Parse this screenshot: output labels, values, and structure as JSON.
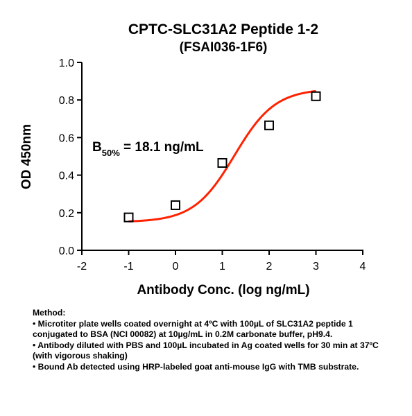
{
  "chart_data": {
    "type": "scatter",
    "title": "CPTC-SLC31A2 Peptide 1-2",
    "subtitle": "(FSAI036-1F6)",
    "xlabel": "Antibody Conc. (log ng/mL)",
    "ylabel": "OD 450nm",
    "xlim": [
      -2,
      4
    ],
    "ylim": [
      0,
      1.0
    ],
    "x_ticks": [
      "-2",
      "-1",
      "0",
      "1",
      "2",
      "3",
      "4"
    ],
    "y_ticks": [
      "0.0",
      "0.2",
      "0.4",
      "0.6",
      "0.8",
      "1.0"
    ],
    "grid": false,
    "points": {
      "x": [
        -1,
        0,
        1,
        2,
        3
      ],
      "y": [
        0.175,
        0.24,
        0.465,
        0.665,
        0.82
      ]
    },
    "curve": {
      "bottom": 0.15,
      "top": 0.86,
      "logEC50": 1.26,
      "hill": 1.0,
      "x_range": [
        -1,
        3
      ],
      "color": "#ff2200"
    },
    "annotation": {
      "prefix": "B",
      "subscript": "50%",
      "text": " = 18.1 ng/mL"
    }
  },
  "method": {
    "heading": "Method:",
    "items": [
      "• Microtiter plate wells coated overnight at 4ºC  with 100µL of SLC31A2 peptide 1 conjugated to BSA (NCI 00082) at 10µg/mL in 0.2M carbonate buffer, pH9.4.",
      "• Antibody diluted with PBS and 100µL incubated in Ag coated wells for 30 min at 37ºC (with vigorous shaking)",
      "• Bound Ab detected using HRP-labeled goat anti-mouse IgG with TMB substrate."
    ]
  }
}
